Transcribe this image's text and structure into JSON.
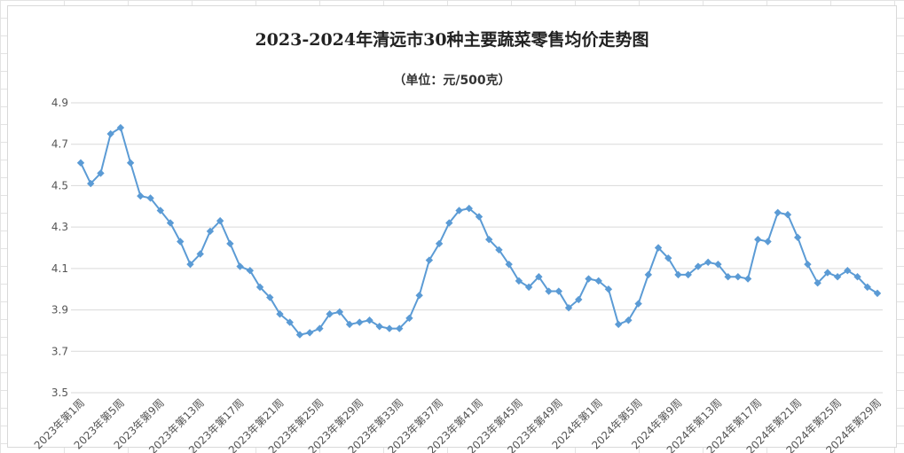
{
  "chart_data": {
    "type": "line",
    "title": "2023-2024年清远市30种主要蔬菜零售均价走势图",
    "subtitle": "（单位：元/500克）",
    "xlabel": "",
    "ylabel": "",
    "ylim": [
      3.5,
      4.9
    ],
    "yticks": [
      "3.5",
      "3.7",
      "3.9",
      "4.1",
      "4.3",
      "4.5",
      "4.7",
      "4.9"
    ],
    "grid": true,
    "legend": "none",
    "colors": {
      "line": "#5b9bd5",
      "marker": "#5b9bd5",
      "grid": "#d9d9d9"
    },
    "marker": "diamond",
    "x": [
      "2023年第1周",
      "2023年第2周",
      "2023年第3周",
      "2023年第4周",
      "2023年第5周",
      "2023年第6周",
      "2023年第7周",
      "2023年第8周",
      "2023年第9周",
      "2023年第10周",
      "2023年第11周",
      "2023年第12周",
      "2023年第13周",
      "2023年第14周",
      "2023年第15周",
      "2023年第16周",
      "2023年第17周",
      "2023年第18周",
      "2023年第19周",
      "2023年第20周",
      "2023年第21周",
      "2023年第22周",
      "2023年第23周",
      "2023年第24周",
      "2023年第25周",
      "2023年第26周",
      "2023年第27周",
      "2023年第28周",
      "2023年第29周",
      "2023年第30周",
      "2023年第31周",
      "2023年第32周",
      "2023年第33周",
      "2023年第34周",
      "2023年第35周",
      "2023年第36周",
      "2023年第37周",
      "2023年第38周",
      "2023年第39周",
      "2023年第40周",
      "2023年第41周",
      "2023年第42周",
      "2023年第43周",
      "2023年第44周",
      "2023年第45周",
      "2023年第46周",
      "2023年第47周",
      "2023年第48周",
      "2023年第49周",
      "2023年第50周",
      "2023年第51周",
      "2023年第52周",
      "2024年第1周",
      "2024年第2周",
      "2024年第3周",
      "2024年第4周",
      "2024年第5周",
      "2024年第6周",
      "2024年第7周",
      "2024年第8周",
      "2024年第9周",
      "2024年第10周",
      "2024年第11周",
      "2024年第12周",
      "2024年第13周",
      "2024年第14周",
      "2024年第15周",
      "2024年第16周",
      "2024年第17周",
      "2024年第18周",
      "2024年第19周",
      "2024年第20周",
      "2024年第21周",
      "2024年第22周",
      "2024年第23周",
      "2024年第24周",
      "2024年第25周",
      "2024年第26周",
      "2024年第27周",
      "2024年第28周",
      "2024年第29周"
    ],
    "xtick_labels": [
      "2023年第1周",
      "2023年第5周",
      "2023年第9周",
      "2023年第13周",
      "2023年第17周",
      "2023年第21周",
      "2023年第25周",
      "2023年第29周",
      "2023年第33周",
      "2023年第37周",
      "2023年第41周",
      "2023年第45周",
      "2023年第49周",
      "2024年第1周",
      "2024年第5周",
      "2024年第9周",
      "2024年第13周",
      "2024年第17周",
      "2024年第21周",
      "2024年第25周",
      "2024年第29周"
    ],
    "values": [
      4.61,
      4.51,
      4.56,
      4.75,
      4.78,
      4.61,
      4.45,
      4.44,
      4.38,
      4.32,
      4.23,
      4.12,
      4.17,
      4.28,
      4.33,
      4.22,
      4.11,
      4.09,
      4.01,
      3.96,
      3.88,
      3.84,
      3.78,
      3.79,
      3.81,
      3.88,
      3.89,
      3.83,
      3.84,
      3.85,
      3.82,
      3.81,
      3.81,
      3.86,
      3.97,
      4.14,
      4.22,
      4.32,
      4.38,
      4.39,
      4.35,
      4.24,
      4.19,
      4.12,
      4.04,
      4.01,
      4.06,
      3.99,
      3.99,
      3.91,
      3.95,
      4.05,
      4.04,
      4.0,
      3.83,
      3.85,
      3.93,
      4.07,
      4.2,
      4.15,
      4.07,
      4.07,
      4.11,
      4.13,
      4.12,
      4.06,
      4.06,
      4.05,
      4.24,
      4.23,
      4.37,
      4.36,
      4.25,
      4.12,
      4.03,
      4.08,
      4.06,
      4.09,
      4.06,
      4.01,
      3.98
    ]
  }
}
